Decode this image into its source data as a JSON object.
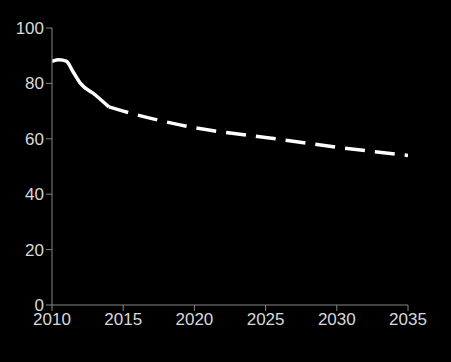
{
  "chart_data": {
    "type": "line",
    "x": [
      2010,
      2010.5,
      2011,
      2011.5,
      2012,
      2013,
      2014,
      2015,
      2020,
      2025,
      2030,
      2035
    ],
    "series": [
      {
        "color": "#ffffff",
        "line_style": "solid",
        "values": [
          88,
          88.5,
          88,
          84,
          80,
          76,
          71.5,
          null,
          null,
          null,
          null,
          null
        ]
      },
      {
        "color": "#ffffff",
        "line_style": "dashed",
        "values": [
          null,
          null,
          null,
          null,
          null,
          null,
          71.5,
          70,
          64,
          60.5,
          57,
          54
        ]
      }
    ],
    "xlim": [
      2010,
      2035
    ],
    "xticks": [
      2010,
      2015,
      2020,
      2025,
      2030,
      2035
    ],
    "ylim": [
      0,
      100
    ],
    "yticks": [
      0,
      20,
      40,
      60,
      80,
      100
    ],
    "grid": false
  }
}
